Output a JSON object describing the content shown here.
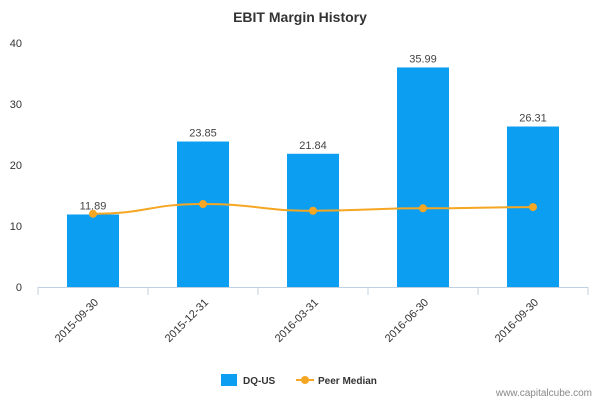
{
  "chart_data": {
    "type": "bar",
    "title": "EBIT Margin History",
    "xlabel": "",
    "ylabel": "",
    "categories": [
      "2015-09-30",
      "2015-12-31",
      "2016-03-31",
      "2016-06-30",
      "2016-09-30"
    ],
    "series": [
      {
        "name": "DQ-US",
        "type": "bar",
        "color": "#0c9ef0",
        "values": [
          11.89,
          23.85,
          21.84,
          35.99,
          26.31
        ],
        "value_labels": [
          "11.89",
          "23.85",
          "21.84",
          "35.99",
          "26.31"
        ]
      },
      {
        "name": "Peer Median",
        "type": "line",
        "color": "#f5a623",
        "values": [
          12.0,
          13.6,
          12.5,
          12.9,
          13.1
        ]
      }
    ],
    "ylim": [
      0,
      40
    ],
    "yticks": [
      0,
      10,
      20,
      30,
      40
    ],
    "grid": false,
    "legend_position": "bottom-center"
  },
  "credit": "www.capitalcube.com"
}
